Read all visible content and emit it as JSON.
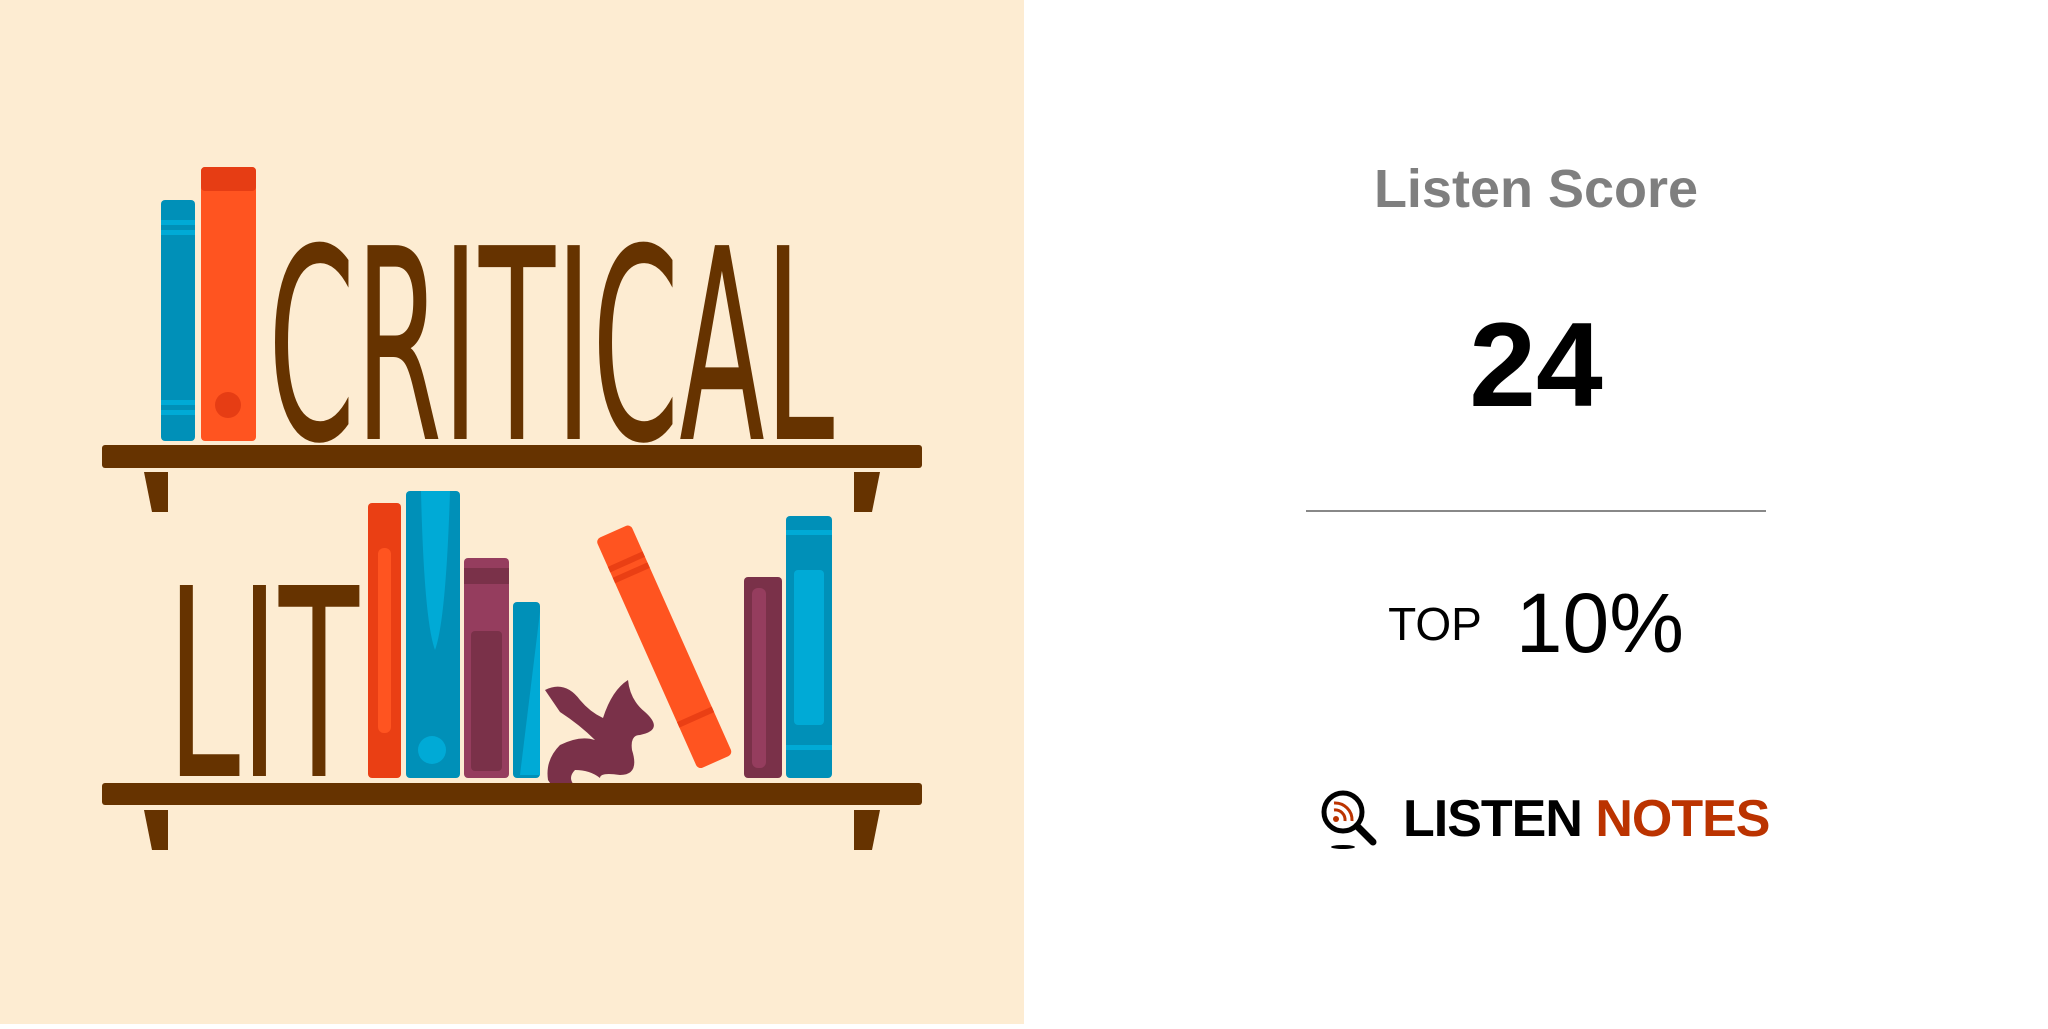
{
  "artwork": {
    "lettering": "Critical Lit",
    "background": "#fdecd2",
    "brown": "#663300"
  },
  "score": {
    "title": "Listen Score",
    "value": "24"
  },
  "rank": {
    "label": "TOP",
    "value": "10%"
  },
  "brand": {
    "part1": "LISTEN",
    "part2": "NOTES",
    "accent": "#bb3300",
    "icon": "magnifier-rss-icon"
  }
}
